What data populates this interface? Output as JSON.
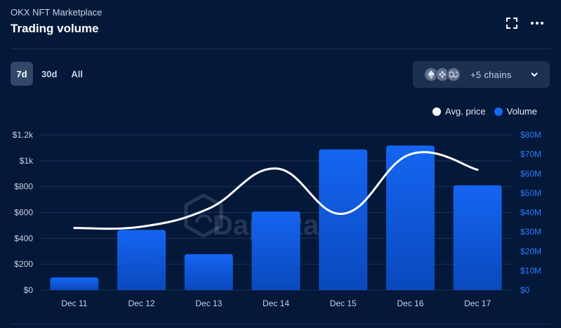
{
  "header": {
    "subtitle": "OKX NFT Marketplace",
    "title": "Trading volume"
  },
  "range_tabs": [
    {
      "label": "7d",
      "active": true
    },
    {
      "label": "30d",
      "active": false
    },
    {
      "label": "All",
      "active": false
    }
  ],
  "chain_selector": {
    "label": "+5 chains",
    "icons": [
      "ethereum-icon",
      "bnb-chain-icon",
      "polygon-icon"
    ]
  },
  "watermark": "DappRadar",
  "colors": {
    "background": "#04183a",
    "volume_bar_top": "#1565f2",
    "volume_bar_bottom": "#0a49bd",
    "avg_price_line": "#ffffff",
    "right_axis_text": "#2d7bf4"
  },
  "chart_data": {
    "type": "bar",
    "categories": [
      "Dec 11",
      "Dec 12",
      "Dec 13",
      "Dec 14",
      "Dec 15",
      "Dec 16",
      "Dec 17"
    ],
    "series": [
      {
        "name": "Volume",
        "type": "bar",
        "axis": "right",
        "values": [
          6500000,
          31000000,
          18500000,
          40500000,
          72500000,
          74500000,
          54000000
        ]
      },
      {
        "name": "Avg. price",
        "type": "line",
        "axis": "left",
        "values": [
          480,
          490,
          630,
          940,
          590,
          1050,
          930
        ]
      }
    ],
    "legend_position": "top-right",
    "grid": true,
    "y_left": {
      "range": [
        0,
        1200
      ],
      "ticks": [
        "$0",
        "$200",
        "$400",
        "$600",
        "$800",
        "$1k",
        "$1.2k"
      ]
    },
    "y_right": {
      "range": [
        0,
        80000000
      ],
      "ticks": [
        "$0",
        "$10M",
        "$20M",
        "$30M",
        "$40M",
        "$50M",
        "$60M",
        "$70M",
        "$80M"
      ]
    }
  }
}
